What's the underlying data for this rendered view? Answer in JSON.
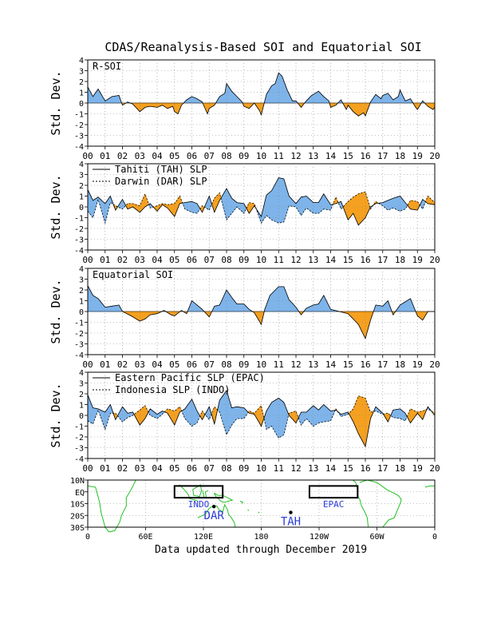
{
  "title": "CDAS/Reanalysis-Based SOI and Equatorial SOI",
  "footer": "Data updated through December 2019",
  "colors": {
    "positive": "#7eb4ea",
    "negative": "#f5a020",
    "land": "#22c022",
    "box_label": "#2b3cd6"
  },
  "ylabel": "Std. Dev.",
  "x_tick_labels": [
    "00",
    "01",
    "02",
    "03",
    "04",
    "05",
    "06",
    "07",
    "08",
    "09",
    "10",
    "11",
    "12",
    "13",
    "14",
    "15",
    "16",
    "17",
    "18",
    "19",
    "20"
  ],
  "y_tick_labels": [
    "4",
    "3",
    "2",
    "1",
    "0",
    "-1",
    "-2",
    "-3",
    "-4"
  ],
  "chart_data": [
    {
      "type": "area",
      "panel_label": "R-SOI",
      "xlim": [
        2000,
        2020
      ],
      "ylim": [
        -4,
        4
      ],
      "grid": true,
      "series": [
        {
          "x": [
            2000,
            2000.3,
            2000.6,
            2001,
            2001.4,
            2001.8,
            2002,
            2002.3,
            2002.6,
            2003,
            2003.3,
            2003.6,
            2004,
            2004.3,
            2004.6,
            2004.9,
            2005,
            2005.2,
            2005.4,
            2005.7,
            2006,
            2006.3,
            2006.6,
            2006.9,
            2007,
            2007.3,
            2007.6,
            2007.9,
            2008,
            2008.3,
            2008.6,
            2008.9,
            2009,
            2009.3,
            2009.6,
            2009.9,
            2010,
            2010.3,
            2010.6,
            2010.8,
            2011,
            2011.2,
            2011.5,
            2011.8,
            2012,
            2012.3,
            2012.6,
            2012.9,
            2013,
            2013.3,
            2013.6,
            2013.9,
            2014,
            2014.3,
            2014.6,
            2014.9,
            2015,
            2015.3,
            2015.6,
            2015.9,
            2016,
            2016.3,
            2016.6,
            2016.9,
            2017,
            2017.3,
            2017.6,
            2017.9,
            2018,
            2018.3,
            2018.6,
            2018.9,
            2019,
            2019.3,
            2019.6,
            2019.9,
            2020
          ],
          "values": [
            1.5,
            0.6,
            1.3,
            0.2,
            0.6,
            0.7,
            -0.2,
            0.1,
            -0.1,
            -0.8,
            -0.4,
            -0.3,
            -0.4,
            -0.2,
            -0.5,
            -0.3,
            -0.8,
            -1.0,
            -0.2,
            0.3,
            0.6,
            0.4,
            0.1,
            -1.0,
            -0.5,
            -0.2,
            0.6,
            0.9,
            1.8,
            1.1,
            0.6,
            0.1,
            -0.3,
            -0.5,
            0.0,
            -0.7,
            -1.1,
            0.8,
            1.6,
            1.8,
            2.8,
            2.5,
            1.2,
            0.2,
            0.2,
            -0.4,
            0.2,
            0.7,
            0.8,
            1.1,
            0.6,
            0.2,
            -0.4,
            -0.2,
            0.3,
            -0.6,
            -0.2,
            -0.8,
            -1.2,
            -0.9,
            -1.2,
            0.1,
            0.8,
            0.4,
            0.7,
            0.9,
            0.3,
            0.6,
            1.2,
            0.2,
            0.4,
            -0.4,
            -0.6,
            0.2,
            -0.3,
            -0.6,
            -0.4
          ]
        }
      ]
    },
    {
      "type": "area",
      "panel_label": "",
      "xlim": [
        2000,
        2020
      ],
      "ylim": [
        -4,
        4
      ],
      "grid": true,
      "legend": [
        "Tahiti (TAH) SLP",
        "Darwin (DAR) SLP"
      ],
      "series": [
        {
          "name": "Tahiti (TAH) SLP",
          "style": "solid",
          "x": [
            2000,
            2000.3,
            2000.6,
            2001,
            2001.3,
            2001.6,
            2002,
            2002.3,
            2002.6,
            2003,
            2003.3,
            2003.6,
            2004,
            2004.3,
            2004.6,
            2005,
            2005.3,
            2005.6,
            2006,
            2006.3,
            2006.6,
            2007,
            2007.3,
            2007.6,
            2008,
            2008.3,
            2008.6,
            2009,
            2009.3,
            2009.6,
            2010,
            2010.3,
            2010.6,
            2011,
            2011.3,
            2011.6,
            2012,
            2012.3,
            2012.6,
            2013,
            2013.3,
            2013.6,
            2014,
            2014.3,
            2014.6,
            2015,
            2015.3,
            2015.6,
            2016,
            2016.3,
            2016.6,
            2017,
            2017.3,
            2017.6,
            2018,
            2018.3,
            2018.6,
            2019,
            2019.3,
            2019.6,
            2020
          ],
          "values": [
            1.6,
            0.6,
            0.9,
            0.3,
            1.0,
            -0.3,
            0.7,
            -0.2,
            0.0,
            -0.5,
            0.0,
            0.3,
            -0.4,
            0.2,
            -0.1,
            -0.9,
            0.3,
            0.4,
            0.5,
            0.3,
            -0.5,
            1.0,
            -0.5,
            0.6,
            1.7,
            0.8,
            0.4,
            0.3,
            -0.6,
            0.1,
            -0.9,
            1.1,
            1.5,
            2.7,
            2.6,
            1.0,
            0.3,
            0.9,
            1.0,
            0.4,
            0.4,
            1.2,
            0.2,
            0.3,
            0.5,
            -1.2,
            -0.6,
            -1.7,
            -1.0,
            0.0,
            0.3,
            0.4,
            0.6,
            0.8,
            1.0,
            0.4,
            -0.2,
            -0.3,
            0.7,
            0.3,
            0.2
          ]
        },
        {
          "name": "Darwin (DAR) SLP",
          "style": "dashed",
          "x": [
            2000,
            2000.3,
            2000.6,
            2001,
            2001.3,
            2001.6,
            2002,
            2002.3,
            2002.6,
            2003,
            2003.3,
            2003.6,
            2004,
            2004.3,
            2004.6,
            2005,
            2005.3,
            2005.6,
            2006,
            2006.3,
            2006.6,
            2007,
            2007.3,
            2007.6,
            2008,
            2008.3,
            2008.6,
            2009,
            2009.3,
            2009.6,
            2010,
            2010.3,
            2010.6,
            2011,
            2011.3,
            2011.6,
            2012,
            2012.3,
            2012.6,
            2013,
            2013.3,
            2013.6,
            2014,
            2014.3,
            2014.6,
            2015,
            2015.3,
            2015.6,
            2016,
            2016.3,
            2016.6,
            2017,
            2017.3,
            2017.6,
            2018,
            2018.3,
            2018.6,
            2019,
            2019.3,
            2019.6,
            2020
          ],
          "values": [
            -0.4,
            -1.0,
            0.7,
            -1.5,
            0.4,
            0.1,
            -0.2,
            0.3,
            0.3,
            0.1,
            1.2,
            -0.1,
            0.1,
            0.3,
            0.2,
            0.3,
            1.0,
            -0.2,
            -0.5,
            -0.6,
            0.1,
            -0.3,
            0.8,
            1.3,
            -1.2,
            -0.6,
            0.0,
            -0.6,
            0.4,
            0.3,
            -1.5,
            -0.8,
            -1.2,
            -1.5,
            -1.4,
            0.1,
            0.0,
            -0.8,
            -0.1,
            -0.6,
            -0.6,
            -0.2,
            -0.3,
            0.9,
            -0.2,
            0.5,
            0.9,
            1.2,
            1.4,
            -0.2,
            0.5,
            0.1,
            -0.3,
            -0.1,
            -0.4,
            -0.2,
            0.6,
            0.5,
            -0.2,
            1.0,
            0.4
          ]
        }
      ]
    },
    {
      "type": "area",
      "panel_label": "Equatorial SOI",
      "xlim": [
        2000,
        2020
      ],
      "ylim": [
        -4,
        4
      ],
      "grid": true,
      "series": [
        {
          "x": [
            2000,
            2000.3,
            2000.6,
            2001,
            2001.4,
            2001.8,
            2002,
            2002.5,
            2003,
            2003.3,
            2003.6,
            2004,
            2004.4,
            2004.8,
            2005,
            2005.4,
            2005.7,
            2006,
            2006.3,
            2006.6,
            2007,
            2007.3,
            2007.6,
            2008,
            2008.3,
            2008.6,
            2009,
            2009.3,
            2009.6,
            2010,
            2010.2,
            2010.5,
            2011,
            2011.3,
            2011.6,
            2012,
            2012.3,
            2012.6,
            2013,
            2013.3,
            2013.6,
            2014,
            2014.5,
            2015,
            2015.3,
            2015.6,
            2016,
            2016.3,
            2016.6,
            2017,
            2017.3,
            2017.6,
            2018,
            2018.3,
            2018.6,
            2019,
            2019.3,
            2019.6,
            2020
          ],
          "values": [
            2.4,
            1.5,
            1.2,
            0.4,
            0.5,
            0.6,
            0.0,
            -0.4,
            -0.9,
            -0.7,
            -0.3,
            -0.2,
            0.1,
            -0.3,
            -0.4,
            0.1,
            -0.2,
            1.0,
            0.6,
            0.2,
            -0.5,
            0.5,
            0.6,
            2.0,
            1.3,
            0.7,
            0.7,
            0.2,
            -0.1,
            -1.2,
            0.2,
            1.5,
            2.3,
            2.3,
            1.1,
            0.4,
            -0.3,
            0.3,
            0.6,
            0.7,
            1.5,
            0.2,
            0.0,
            -0.2,
            -0.7,
            -1.2,
            -2.5,
            -0.8,
            0.6,
            0.5,
            1.0,
            -0.3,
            0.6,
            0.9,
            1.2,
            -0.4,
            -0.8,
            0.0,
            0.0
          ]
        }
      ]
    },
    {
      "type": "area",
      "panel_label": "",
      "xlim": [
        2000,
        2020
      ],
      "ylim": [
        -4,
        4
      ],
      "grid": true,
      "legend": [
        "Eastern Pacific SLP (EPAC)",
        "Indonesia SLP (INDO)"
      ],
      "series": [
        {
          "name": "Eastern Pacific SLP (EPAC)",
          "style": "solid",
          "x": [
            2000,
            2000.3,
            2000.6,
            2001,
            2001.3,
            2001.6,
            2002,
            2002.3,
            2002.6,
            2003,
            2003.3,
            2003.6,
            2004,
            2004.3,
            2004.6,
            2005,
            2005.3,
            2005.6,
            2006,
            2006.3,
            2006.6,
            2007,
            2007.3,
            2007.6,
            2008,
            2008.3,
            2008.6,
            2009,
            2009.3,
            2009.6,
            2010,
            2010.3,
            2010.6,
            2011,
            2011.3,
            2011.6,
            2012,
            2012.3,
            2012.6,
            2013,
            2013.3,
            2013.6,
            2014,
            2014.3,
            2014.6,
            2015,
            2015.3,
            2015.6,
            2016,
            2016.3,
            2016.6,
            2017,
            2017.3,
            2017.6,
            2018,
            2018.3,
            2018.6,
            2019,
            2019.3,
            2019.6,
            2020
          ],
          "values": [
            1.9,
            0.7,
            0.6,
            0.3,
            1.0,
            -0.4,
            0.8,
            0.2,
            0.3,
            -0.9,
            -0.3,
            0.6,
            0.1,
            0.4,
            0.2,
            -0.9,
            0.3,
            0.6,
            1.5,
            0.4,
            -0.4,
            0.8,
            -0.8,
            1.4,
            2.3,
            0.7,
            0.8,
            0.7,
            0.2,
            0.1,
            -1.0,
            0.4,
            1.2,
            1.6,
            1.2,
            0.0,
            -0.7,
            0.3,
            0.3,
            0.9,
            0.5,
            1.0,
            0.4,
            0.5,
            0.1,
            0.3,
            -0.6,
            -1.7,
            -2.9,
            -0.3,
            0.8,
            0.2,
            -0.6,
            0.5,
            0.6,
            0.2,
            -0.7,
            0.2,
            -0.4,
            0.8,
            0.0
          ]
        },
        {
          "name": "Indonesia SLP (INDO)",
          "style": "dashed",
          "x": [
            2000,
            2000.3,
            2000.6,
            2001,
            2001.3,
            2001.6,
            2002,
            2002.3,
            2002.6,
            2003,
            2003.3,
            2003.6,
            2004,
            2004.3,
            2004.6,
            2005,
            2005.3,
            2005.6,
            2006,
            2006.3,
            2006.6,
            2007,
            2007.3,
            2007.6,
            2008,
            2008.3,
            2008.6,
            2009,
            2009.3,
            2009.6,
            2010,
            2010.3,
            2010.6,
            2011,
            2011.3,
            2011.6,
            2012,
            2012.3,
            2012.6,
            2013,
            2013.3,
            2013.6,
            2014,
            2014.3,
            2014.6,
            2015,
            2015.3,
            2015.6,
            2016,
            2016.3,
            2016.6,
            2017,
            2017.3,
            2017.6,
            2018,
            2018.3,
            2018.6,
            2019,
            2019.3,
            2019.6,
            2020
          ],
          "values": [
            -0.5,
            -0.8,
            0.5,
            -1.3,
            0.2,
            0.2,
            -0.6,
            -0.2,
            0.0,
            0.5,
            0.9,
            0.0,
            -0.3,
            0.1,
            0.6,
            0.4,
            0.8,
            -0.3,
            -1.0,
            -0.7,
            0.4,
            -0.4,
            0.8,
            0.3,
            -1.8,
            -0.9,
            -0.3,
            -0.3,
            0.4,
            0.2,
            0.9,
            -1.3,
            -1.0,
            -2.1,
            -1.8,
            0.2,
            0.4,
            -0.9,
            -0.3,
            -1.0,
            -0.7,
            -0.6,
            -0.5,
            0.6,
            -0.1,
            0.1,
            0.6,
            1.8,
            1.6,
            0.3,
            0.4,
            0.1,
            0.2,
            -0.2,
            -0.3,
            -0.5,
            0.6,
            0.3,
            0.4,
            0.6,
            0.2
          ]
        }
      ]
    }
  ],
  "map": {
    "lat_labels": [
      "10N",
      "EQ",
      "10S",
      "20S",
      "30S"
    ],
    "lon_labels": [
      "0",
      "60E",
      "120E",
      "180",
      "120W",
      "60W",
      "0"
    ],
    "boxes": [
      {
        "label": "INDO",
        "lon": [
          90,
          140
        ],
        "lat": [
          -5,
          5
        ]
      },
      {
        "label": "EPAC",
        "lon": [
          230,
          280
        ],
        "lat": [
          -5,
          5
        ]
      }
    ],
    "stations": [
      {
        "label": "DAR",
        "lon": 130.9,
        "lat": -12.5
      },
      {
        "label": "TAH",
        "lon": 210.6,
        "lat": -17.5
      }
    ]
  }
}
